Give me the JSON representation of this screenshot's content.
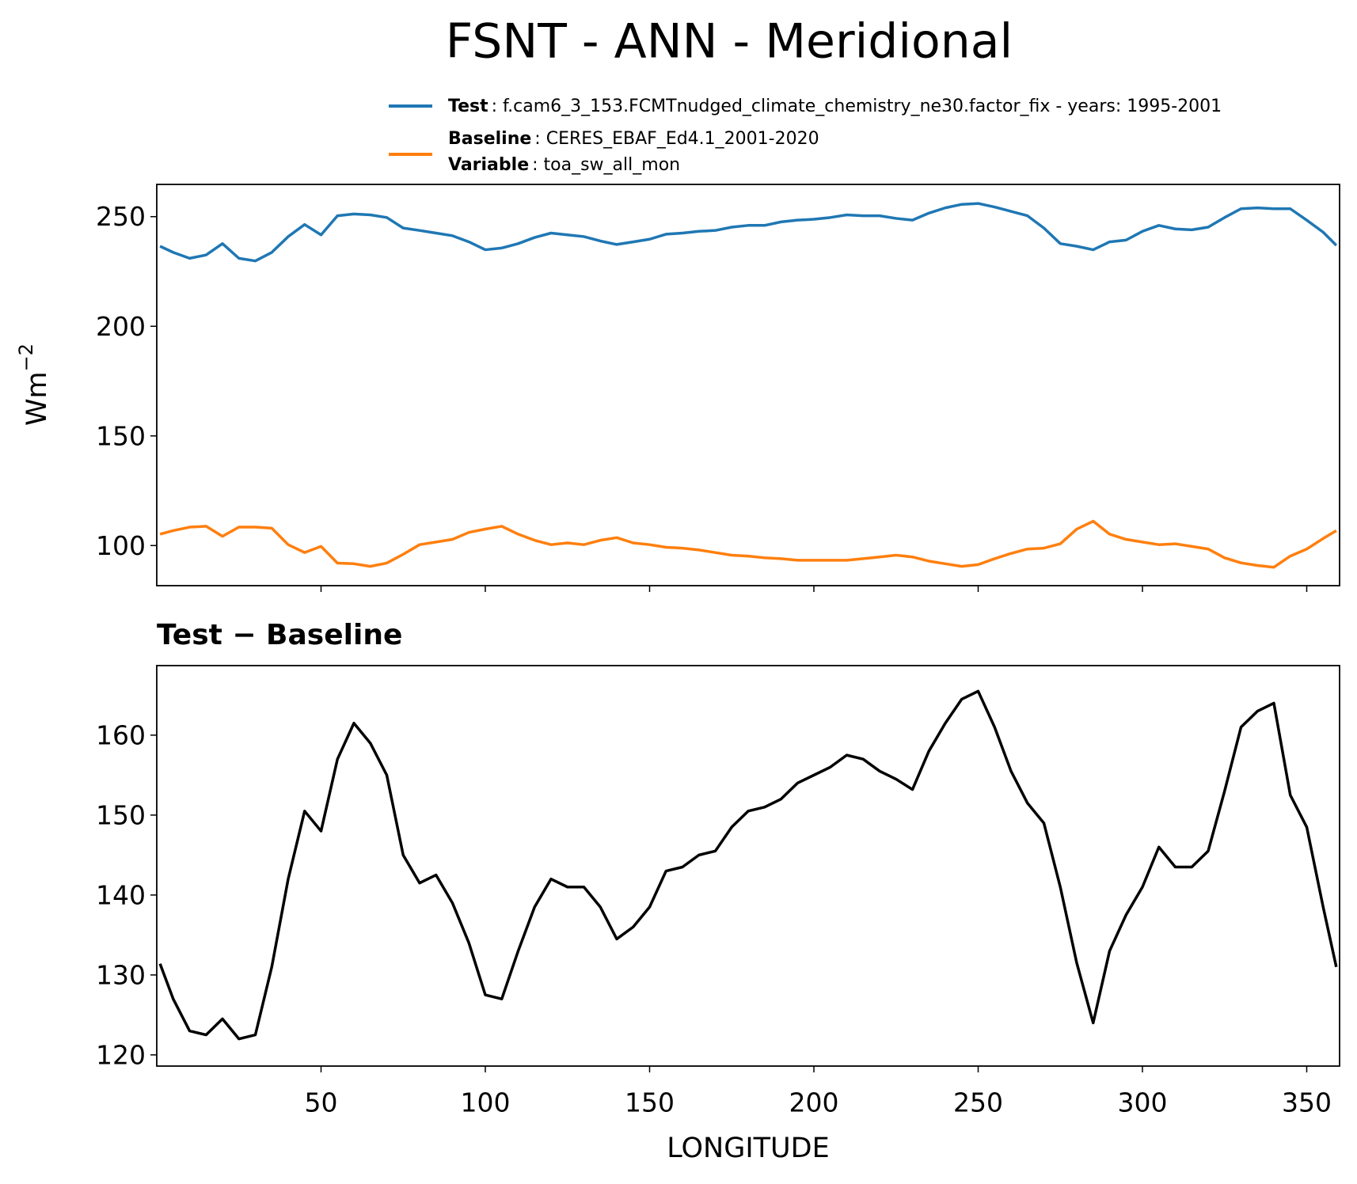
{
  "chart_data": [
    {
      "type": "line",
      "title": "FSNT - ANN - Meridional",
      "ylabel": "Wm",
      "ylabel_sup": "−2",
      "x": [
        1,
        5,
        10,
        15,
        20,
        25,
        30,
        35,
        40,
        45,
        50,
        55,
        60,
        65,
        70,
        75,
        80,
        85,
        90,
        95,
        100,
        105,
        110,
        115,
        120,
        125,
        130,
        135,
        140,
        145,
        150,
        155,
        160,
        165,
        170,
        175,
        180,
        185,
        190,
        195,
        200,
        205,
        210,
        215,
        220,
        225,
        230,
        235,
        240,
        245,
        250,
        255,
        260,
        265,
        270,
        275,
        280,
        285,
        290,
        295,
        300,
        305,
        310,
        315,
        320,
        325,
        330,
        335,
        340,
        345,
        350,
        355,
        359
      ],
      "series": [
        {
          "name": "Test",
          "description": ": f.cam6_3_153.FCMTnudged_climate_chemistry_ne30.factor_fix - years: 1995-2001",
          "color": "#1f77b4",
          "values": [
            236.5,
            233.7,
            231,
            232.5,
            237.7,
            231,
            229.8,
            233.7,
            240.9,
            246.4,
            241.7,
            250.4,
            251.2,
            250.8,
            249.6,
            244.8,
            243.7,
            242.5,
            241.3,
            238.5,
            234.9,
            235.7,
            237.7,
            240.5,
            242.5,
            241.7,
            240.9,
            238.9,
            237.3,
            238.5,
            239.7,
            242,
            242.5,
            243.3,
            243.7,
            245.2,
            246,
            246,
            247.6,
            248.4,
            248.8,
            249.6,
            250.8,
            250.4,
            250.4,
            249.2,
            248.4,
            251.6,
            254,
            255.6,
            256,
            254.4,
            252.4,
            250.4,
            244.8,
            237.7,
            236.5,
            234.9,
            238.5,
            239.3,
            243.3,
            246,
            244.4,
            244,
            245.2,
            249.6,
            253.6,
            254,
            253.6,
            253.6,
            248.4,
            242.9,
            236.9
          ]
        },
        {
          "name": "Baseline",
          "description": ": CERES_EBAF_Ed4.1_2001-2020",
          "extra_name": "Variable",
          "extra_description": ": toa_sw_all_mon",
          "color": "#ff7f0e",
          "values": [
            105.2,
            106.8,
            108.4,
            108.8,
            104.2,
            108.4,
            108.4,
            107.9,
            100.4,
            96.8,
            99.6,
            92,
            91.7,
            90.5,
            92,
            96,
            100.4,
            101.6,
            102.8,
            106,
            107.5,
            108.8,
            105.2,
            102.4,
            100.4,
            101.2,
            100.4,
            102.4,
            103.6,
            101.2,
            100.4,
            99.2,
            98.8,
            98,
            96.8,
            95.6,
            95.2,
            94.4,
            94,
            93.3,
            93.3,
            93.3,
            93.3,
            94,
            94.8,
            95.6,
            94.8,
            92.9,
            91.7,
            90.5,
            91.3,
            94,
            96.4,
            98.4,
            98.8,
            100.8,
            107.5,
            111.1,
            105.2,
            102.8,
            101.6,
            100.4,
            100.8,
            99.6,
            98.4,
            94.4,
            92.1,
            90.9,
            90.1,
            95.2,
            98.4,
            103.2,
            106.8
          ]
        }
      ],
      "xlim": [
        0,
        360
      ],
      "xticks": [
        50,
        100,
        150,
        200,
        250,
        300,
        350
      ],
      "ylim": [
        81.7,
        264.7
      ],
      "yticks": [
        100,
        150,
        200,
        250
      ]
    },
    {
      "type": "line",
      "title": "Test − Baseline",
      "xlabel": "LONGITUDE",
      "x": [
        1,
        5,
        10,
        15,
        20,
        25,
        30,
        35,
        40,
        45,
        50,
        55,
        60,
        65,
        70,
        75,
        80,
        85,
        90,
        95,
        100,
        105,
        110,
        115,
        120,
        125,
        130,
        135,
        140,
        145,
        150,
        155,
        160,
        165,
        170,
        175,
        180,
        185,
        190,
        195,
        200,
        205,
        210,
        215,
        220,
        225,
        230,
        235,
        240,
        245,
        250,
        255,
        260,
        265,
        270,
        275,
        280,
        285,
        290,
        295,
        300,
        305,
        310,
        315,
        320,
        325,
        330,
        335,
        340,
        345,
        350,
        355,
        359
      ],
      "series": [
        {
          "color": "#000000",
          "values": [
            131.4,
            127,
            123,
            122.5,
            124.5,
            122,
            122.5,
            131,
            142,
            150.5,
            148,
            157,
            161.5,
            159,
            155,
            145,
            141.5,
            142.5,
            139,
            134,
            127.5,
            127,
            133,
            138.5,
            142,
            141,
            141,
            138.5,
            134.5,
            136,
            138.5,
            143,
            143.5,
            145,
            145.5,
            148.5,
            150.5,
            151,
            152,
            154,
            155,
            156,
            157.5,
            157,
            155.5,
            154.5,
            153.2,
            158,
            161.5,
            164.5,
            165.5,
            161,
            155.5,
            151.5,
            149,
            141,
            131.5,
            124,
            133,
            137.5,
            141,
            146,
            143.5,
            143.5,
            145.5,
            153,
            161,
            163,
            164,
            152.5,
            148.5,
            138.5,
            131
          ]
        }
      ],
      "xlim": [
        0,
        360
      ],
      "xticks": [
        50,
        100,
        150,
        200,
        250,
        300,
        350
      ],
      "ylim": [
        118.6,
        168.7
      ],
      "yticks": [
        120,
        130,
        140,
        150,
        160
      ]
    }
  ]
}
